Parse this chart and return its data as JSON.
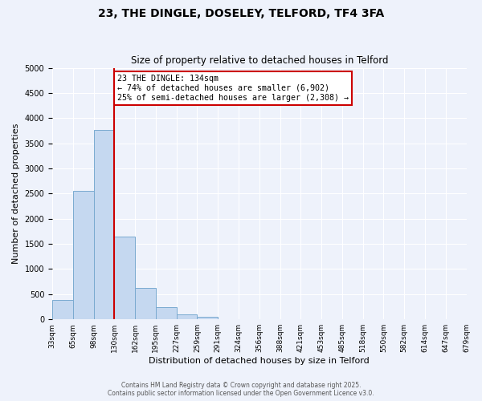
{
  "title": "23, THE DINGLE, DOSELEY, TELFORD, TF4 3FA",
  "subtitle": "Size of property relative to detached houses in Telford",
  "xlabel": "Distribution of detached houses by size in Telford",
  "ylabel": "Number of detached properties",
  "background_color": "#eef2fb",
  "bar_color": "#c5d8f0",
  "bar_edge_color": "#7aaad0",
  "grid_color": "#ffffff",
  "bin_labels": [
    "33sqm",
    "65sqm",
    "98sqm",
    "130sqm",
    "162sqm",
    "195sqm",
    "227sqm",
    "259sqm",
    "291sqm",
    "324sqm",
    "356sqm",
    "388sqm",
    "421sqm",
    "453sqm",
    "485sqm",
    "518sqm",
    "550sqm",
    "582sqm",
    "614sqm",
    "647sqm",
    "679sqm"
  ],
  "values": [
    390,
    2550,
    3760,
    1650,
    620,
    245,
    100,
    50,
    0,
    0,
    0,
    0,
    0,
    0,
    0,
    0,
    0,
    0,
    0,
    0
  ],
  "ylim": [
    0,
    5000
  ],
  "yticks": [
    0,
    500,
    1000,
    1500,
    2000,
    2500,
    3000,
    3500,
    4000,
    4500,
    5000
  ],
  "marker_bin_index": 3,
  "annotation_line1": "23 THE DINGLE: 134sqm",
  "annotation_line2": "← 74% of detached houses are smaller (6,902)",
  "annotation_line3": "25% of semi-detached houses are larger (2,308) →",
  "annotation_box_color": "#ffffff",
  "annotation_border_color": "#cc0000",
  "vline_color": "#cc0000",
  "footer_line1": "Contains HM Land Registry data © Crown copyright and database right 2025.",
  "footer_line2": "Contains public sector information licensed under the Open Government Licence v3.0."
}
